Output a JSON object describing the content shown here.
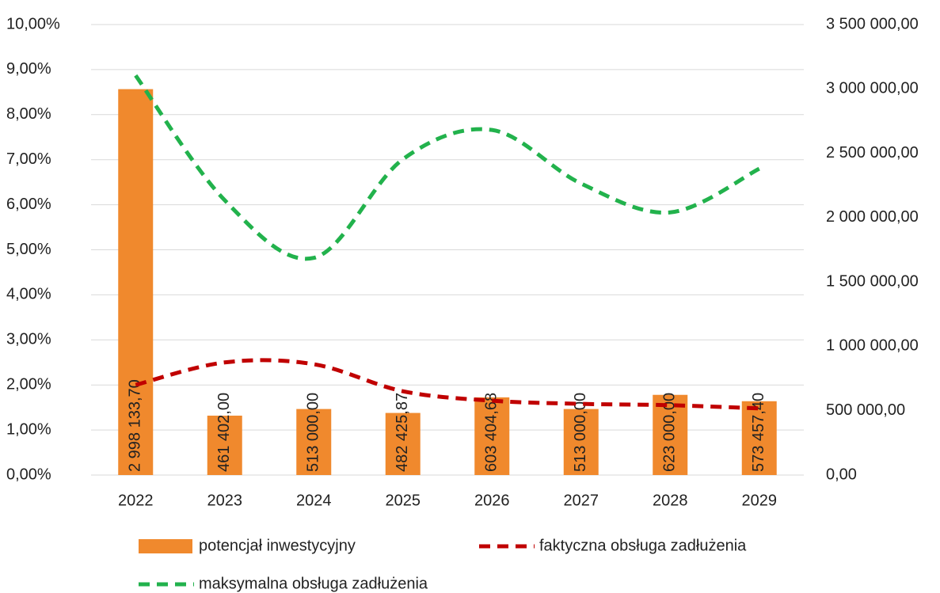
{
  "chart_data": {
    "type": "bar",
    "categories": [
      "2022",
      "2023",
      "2024",
      "2025",
      "2026",
      "2027",
      "2028",
      "2029"
    ],
    "series": [
      {
        "name": "potencjał inwestycyjny",
        "type": "bar",
        "axis": "y2",
        "color": "#f0892d",
        "values": [
          2998133.7,
          461402.0,
          513000.0,
          482425.87,
          603404.68,
          513000.0,
          623000.0,
          573457.4
        ],
        "value_labels": [
          "2 998 133,70",
          "461 402,00",
          "513 000,00",
          "482 425,87",
          "603 404,68",
          "513 000,00",
          "623 000,00",
          "573 457,40"
        ]
      },
      {
        "name": "faktyczna obsługa zadłużenia",
        "type": "line",
        "axis": "y",
        "color": "#c00000",
        "values": [
          2.0,
          2.5,
          2.46,
          1.86,
          1.65,
          1.58,
          1.55,
          1.48
        ]
      },
      {
        "name": "maksymalna obsługa zadłużenia",
        "type": "line",
        "axis": "y",
        "color": "#22b24c",
        "values": [
          8.87,
          6.1,
          4.82,
          7.01,
          7.66,
          6.47,
          5.83,
          6.8
        ]
      }
    ],
    "ylim": [
      0,
      10
    ],
    "yticks": [
      {
        "value": 0,
        "label": "0,00%"
      },
      {
        "value": 1,
        "label": "1,00%"
      },
      {
        "value": 2,
        "label": "2,00%"
      },
      {
        "value": 3,
        "label": "3,00%"
      },
      {
        "value": 4,
        "label": "4,00%"
      },
      {
        "value": 5,
        "label": "5,00%"
      },
      {
        "value": 6,
        "label": "6,00%"
      },
      {
        "value": 7,
        "label": "7,00%"
      },
      {
        "value": 8,
        "label": "8,00%"
      },
      {
        "value": 9,
        "label": "9,00%"
      },
      {
        "value": 10,
        "label": "10,00%"
      }
    ],
    "y2lim": [
      0,
      3500000
    ],
    "y2ticks": [
      {
        "value": 0,
        "label": "0,00"
      },
      {
        "value": 500000,
        "label": "500 000,00"
      },
      {
        "value": 1000000,
        "label": "1 000 000,00"
      },
      {
        "value": 1500000,
        "label": "1 500 000,00"
      },
      {
        "value": 2000000,
        "label": "2 000 000,00"
      },
      {
        "value": 2500000,
        "label": "2 500 000,00"
      },
      {
        "value": 3000000,
        "label": "3 000 000,00"
      },
      {
        "value": 3500000,
        "label": "3 500 000,00"
      }
    ],
    "grid": true,
    "legend": "bottom"
  }
}
